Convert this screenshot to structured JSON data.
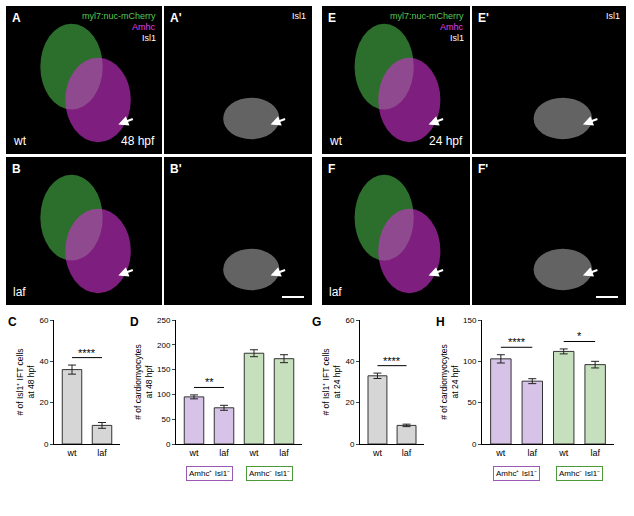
{
  "image_panels": [
    {
      "letter": "A",
      "channels": [
        {
          "text": "myl7:nuc-mCherry",
          "color": "#55c855"
        },
        {
          "text": "Amhc",
          "color": "#e040e0"
        },
        {
          "text": "Isl1",
          "color": "#ffffff"
        }
      ],
      "genotype": "wt",
      "stage": "48 hpf"
    },
    {
      "letter": "A'",
      "channels": [
        {
          "text": "Isl1",
          "color": "#ffffff"
        }
      ]
    },
    {
      "letter": "B",
      "genotype": "laf"
    },
    {
      "letter": "B'"
    },
    {
      "letter": "E",
      "channels": [
        {
          "text": "myl7:nuc-mCherry",
          "color": "#55c855"
        },
        {
          "text": "Amhc",
          "color": "#e040e0"
        },
        {
          "text": "Isl1",
          "color": "#ffffff"
        }
      ],
      "genotype": "wt",
      "stage": "24 hpf"
    },
    {
      "letter": "E'",
      "channels": [
        {
          "text": "Isl1",
          "color": "#ffffff"
        }
      ]
    },
    {
      "letter": "F",
      "genotype": "laf"
    },
    {
      "letter": "F'"
    }
  ],
  "chart_data": [
    {
      "letter": "C",
      "type": "bar",
      "y_label": "# of Isl1⁺ IFT cells at 48 hpf",
      "categories": [
        "wt",
        "laf"
      ],
      "values": [
        36,
        9
      ],
      "errors": [
        2.2,
        1.4
      ],
      "colors": [
        "#d6d6d6",
        "#d6d6d6"
      ],
      "ylim": [
        0,
        60
      ],
      "yticks": [
        0,
        20,
        40,
        60
      ],
      "significance": [
        {
          "between": [
            0,
            1
          ],
          "label": "****"
        }
      ]
    },
    {
      "letter": "D",
      "type": "bar",
      "y_label": "# of cardiomyocytes at 48 hpf",
      "categories": [
        "wt",
        "laf",
        "wt",
        "laf"
      ],
      "values": [
        95,
        73,
        183,
        172
      ],
      "errors": [
        4,
        5,
        7,
        8
      ],
      "colors": [
        "#d8c3e8",
        "#d8c3e8",
        "#c6e0bd",
        "#c6e0bd"
      ],
      "ylim": [
        0,
        250
      ],
      "yticks": [
        0,
        50,
        100,
        150,
        200,
        250
      ],
      "significance": [
        {
          "between": [
            0,
            1
          ],
          "label": "**"
        }
      ],
      "groups": [
        {
          "label": "Amhc⁺ Isl1⁻",
          "color": "#9b59b6",
          "members": [
            0,
            1
          ]
        },
        {
          "label": "Amhc⁻ Isl1⁻",
          "color": "#4a9a3a",
          "members": [
            2,
            3
          ]
        }
      ]
    },
    {
      "letter": "G",
      "type": "bar",
      "y_label": "# of Isl1⁺ IFT cells at 24 hpf",
      "categories": [
        "wt",
        "laf"
      ],
      "values": [
        33,
        9
      ],
      "errors": [
        1.3,
        0.6
      ],
      "colors": [
        "#d6d6d6",
        "#d6d6d6"
      ],
      "ylim": [
        0,
        60
      ],
      "yticks": [
        0,
        20,
        40,
        60
      ],
      "significance": [
        {
          "between": [
            0,
            1
          ],
          "label": "****"
        }
      ]
    },
    {
      "letter": "H",
      "type": "bar",
      "y_label": "# of cardiomyocytes at 24 hpf",
      "categories": [
        "wt",
        "laf",
        "wt",
        "laf"
      ],
      "values": [
        103,
        76,
        112,
        96
      ],
      "errors": [
        5,
        3,
        3,
        4
      ],
      "colors": [
        "#d8c3e8",
        "#d8c3e8",
        "#c6e0bd",
        "#c6e0bd"
      ],
      "ylim": [
        0,
        150
      ],
      "yticks": [
        0,
        50,
        100,
        150
      ],
      "significance": [
        {
          "between": [
            0,
            1
          ],
          "label": "****"
        },
        {
          "between": [
            2,
            3
          ],
          "label": "*"
        }
      ],
      "groups": [
        {
          "label": "Amhc⁺ Isl1⁻",
          "color": "#9b59b6",
          "members": [
            0,
            1
          ]
        },
        {
          "label": "Amhc⁻ Isl1⁻",
          "color": "#4a9a3a",
          "members": [
            2,
            3
          ]
        }
      ]
    }
  ]
}
